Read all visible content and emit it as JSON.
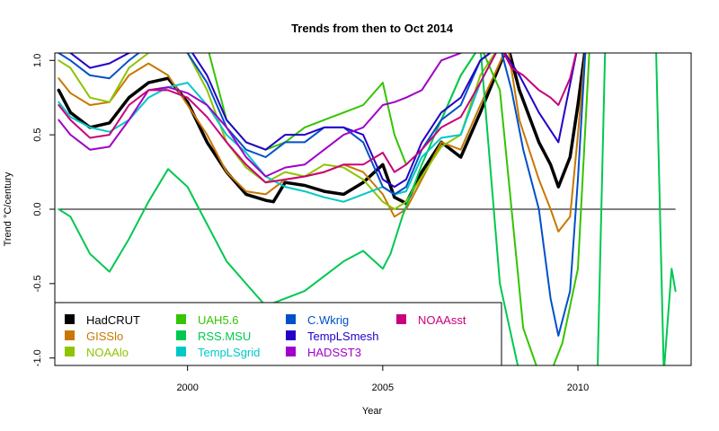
{
  "chart_data": {
    "type": "line",
    "title": "Trends from then to Oct 2014",
    "xlabel": "Year",
    "ylabel": "Trend °C/century",
    "xlim": [
      1996.6,
      2012.9
    ],
    "ylim": [
      -1.05,
      1.05
    ],
    "x_ticks": [
      {
        "value": 2000,
        "label": "2000"
      },
      {
        "value": 2005,
        "label": "2005"
      },
      {
        "value": 2010,
        "label": "2010"
      }
    ],
    "y_ticks": [
      {
        "value": -1.0,
        "label": "-1.0"
      },
      {
        "value": -0.5,
        "label": "-0.5"
      },
      {
        "value": 0.0,
        "label": "0.0"
      },
      {
        "value": 0.5,
        "label": "0.5"
      },
      {
        "value": 1.0,
        "label": "1.0"
      }
    ],
    "reference_line": 0,
    "series": [
      {
        "name": "HadCRUT",
        "color": "#000000",
        "width": 3.5,
        "x": [
          1996.7,
          1997,
          1997.5,
          1998,
          1998.5,
          1999,
          1999.5,
          2000,
          2000.5,
          2001,
          2001.5,
          2002,
          2002.2,
          2002.5,
          2003,
          2003.5,
          2004,
          2004.5,
          2005,
          2005.3,
          2005.6,
          2006,
          2006.5,
          2007,
          2007.5,
          2008.2,
          2008.5,
          2009,
          2009.3,
          2009.5,
          2009.8,
          2010,
          2010.2
        ],
        "y": [
          0.8,
          0.65,
          0.55,
          0.58,
          0.75,
          0.85,
          0.88,
          0.72,
          0.45,
          0.25,
          0.1,
          0.06,
          0.05,
          0.18,
          0.16,
          0.12,
          0.1,
          0.18,
          0.3,
          0.08,
          0.04,
          0.25,
          0.45,
          0.35,
          0.65,
          1.1,
          0.8,
          0.45,
          0.3,
          0.15,
          0.35,
          0.7,
          1.1
        ]
      },
      {
        "name": "GISSlo",
        "color": "#c87800",
        "width": 2,
        "x": [
          1996.7,
          1997,
          1997.5,
          1998,
          1998.5,
          1999,
          1999.5,
          2000,
          2000.5,
          2001,
          2001.5,
          2002,
          2002.5,
          2003,
          2003.5,
          2004,
          2004.5,
          2005,
          2005.3,
          2005.6,
          2006,
          2006.5,
          2007,
          2007.5,
          2008.2,
          2008.5,
          2009,
          2009.3,
          2009.5,
          2009.8,
          2010,
          2010.2
        ],
        "y": [
          0.88,
          0.78,
          0.7,
          0.72,
          0.9,
          0.98,
          0.9,
          0.7,
          0.5,
          0.25,
          0.12,
          0.1,
          0.2,
          0.22,
          0.25,
          0.3,
          0.25,
          0.1,
          -0.05,
          0.0,
          0.2,
          0.45,
          0.4,
          0.7,
          1.1,
          0.6,
          0.2,
          0.0,
          -0.15,
          -0.05,
          0.5,
          1.1
        ]
      },
      {
        "name": "NOAAlo",
        "color": "#8ec400",
        "width": 2,
        "x": [
          1996.7,
          1997,
          1997.5,
          1998,
          1998.5,
          1999,
          1999.5,
          2000,
          2000.5,
          2001,
          2001.5,
          2002,
          2002.5,
          2003,
          2003.5,
          2004,
          2004.5,
          2005,
          2005.3,
          2005.6,
          2006,
          2006.5,
          2007,
          2007.5,
          2008
        ],
        "y": [
          1.0,
          0.95,
          0.75,
          0.72,
          0.95,
          1.05,
          1.1,
          1.05,
          0.8,
          0.45,
          0.28,
          0.18,
          0.25,
          0.22,
          0.3,
          0.28,
          0.2,
          0.05,
          0.0,
          0.05,
          0.22,
          0.42,
          0.5,
          0.9,
          1.1
        ]
      },
      {
        "name": "UAH5.6",
        "color": "#34c400",
        "width": 2,
        "x": [
          1998,
          1998.5,
          1999,
          1999.5,
          2000,
          2000.5,
          2001,
          2001.5,
          2002,
          2002.5,
          2003,
          2003.5,
          2004,
          2004.5,
          2005,
          2005.3,
          2005.6,
          2006,
          2006.5,
          2007,
          2007.5,
          2008,
          2008.3,
          2008.6,
          2009,
          2009.3,
          2009.6,
          2010,
          2010.3
        ],
        "y": [
          1.1,
          1.05,
          1.1,
          1.1,
          1.1,
          1.1,
          0.6,
          0.45,
          0.4,
          0.45,
          0.55,
          0.6,
          0.65,
          0.7,
          0.85,
          0.5,
          0.3,
          0.4,
          0.6,
          0.9,
          1.1,
          0.8,
          0.0,
          -0.8,
          -1.1,
          -1.1,
          -0.9,
          -0.4,
          1.1
        ]
      },
      {
        "name": "RSS.MSU",
        "color": "#00c850",
        "width": 2,
        "x": [
          1996.7,
          1997,
          1997.5,
          1998,
          1998.5,
          1999,
          1999.5,
          2000,
          2000.5,
          2001,
          2001.5,
          2002,
          2002.5,
          2003,
          2003.5,
          2004,
          2004.5,
          2005,
          2005.2,
          2005.5,
          2006,
          2006.5,
          2007,
          2007.5,
          2008,
          2008.5,
          2009,
          2009.5,
          2010,
          2010.5,
          2010.7,
          2011,
          2012,
          2012.2,
          2012.4,
          2012.5
        ],
        "y": [
          0.0,
          -0.05,
          -0.3,
          -0.42,
          -0.2,
          0.05,
          0.27,
          0.15,
          -0.1,
          -0.35,
          -0.5,
          -0.65,
          -0.6,
          -0.55,
          -0.45,
          -0.35,
          -0.28,
          -0.4,
          -0.3,
          -0.05,
          0.3,
          0.6,
          0.9,
          1.1,
          -0.5,
          -1.1,
          -1.1,
          -1.1,
          -1.1,
          -1.1,
          1.1,
          1.1,
          1.1,
          -1.1,
          -0.4,
          -0.55
        ]
      },
      {
        "name": "TempLSgrid",
        "color": "#00c8c8",
        "width": 2,
        "x": [
          1996.7,
          1997,
          1997.5,
          1998,
          1998.5,
          1999,
          1999.5,
          2000,
          2000.5,
          2001,
          2001.5,
          2002,
          2002.5,
          2003,
          2003.5,
          2004,
          2004.5,
          2005,
          2005.3,
          2005.6,
          2006,
          2006.5,
          2007,
          2007.5,
          2008
        ],
        "y": [
          0.72,
          0.62,
          0.55,
          0.52,
          0.6,
          0.75,
          0.82,
          0.85,
          0.7,
          0.5,
          0.38,
          0.22,
          0.15,
          0.12,
          0.08,
          0.05,
          0.1,
          0.15,
          0.1,
          0.12,
          0.35,
          0.48,
          0.5,
          0.85,
          1.1
        ]
      },
      {
        "name": "C.Wkrig",
        "color": "#0050c8",
        "width": 2,
        "x": [
          1996.7,
          1997,
          1997.5,
          1998,
          1998.5,
          1999,
          1999.5,
          2000,
          2000.5,
          2001,
          2001.5,
          2002,
          2002.5,
          2003,
          2003.5,
          2004,
          2004.5,
          2005,
          2005.3,
          2005.6,
          2006,
          2006.5,
          2007,
          2007.5,
          2008,
          2008.3,
          2008.6,
          2009,
          2009.3,
          2009.5,
          2009.8,
          2010,
          2010.2
        ],
        "y": [
          1.05,
          1.0,
          0.9,
          0.88,
          1.0,
          1.1,
          1.1,
          1.05,
          0.85,
          0.55,
          0.4,
          0.35,
          0.45,
          0.45,
          0.55,
          0.55,
          0.45,
          0.15,
          0.1,
          0.15,
          0.4,
          0.6,
          0.7,
          1.0,
          1.1,
          0.8,
          0.4,
          0.0,
          -0.6,
          -0.85,
          -0.55,
          0.2,
          1.1
        ]
      },
      {
        "name": "TempLSmesh",
        "color": "#2400c8",
        "width": 2,
        "x": [
          1996.7,
          1997,
          1997.5,
          1998,
          1998.5,
          1999,
          1999.5,
          2000,
          2000.5,
          2001,
          2001.5,
          2002,
          2002.5,
          2003,
          2003.5,
          2004,
          2004.5,
          2005,
          2005.3,
          2005.6,
          2006,
          2006.5,
          2007,
          2007.5,
          2008,
          2008.5,
          2009,
          2009.5,
          2010
        ],
        "y": [
          1.1,
          1.05,
          0.95,
          0.98,
          1.05,
          1.1,
          1.1,
          1.1,
          0.9,
          0.6,
          0.45,
          0.4,
          0.5,
          0.5,
          0.55,
          0.55,
          0.5,
          0.2,
          0.15,
          0.2,
          0.45,
          0.65,
          0.75,
          1.0,
          1.1,
          0.9,
          0.65,
          0.45,
          1.1
        ]
      },
      {
        "name": "HADSST3",
        "color": "#a000c8",
        "width": 2,
        "x": [
          1996.7,
          1997,
          1997.5,
          1998,
          1998.5,
          1999,
          1999.5,
          2000,
          2000.5,
          2001,
          2001.5,
          2002,
          2002.5,
          2003,
          2003.5,
          2004,
          2004.5,
          2005,
          2005.3,
          2005.6,
          2006,
          2006.5,
          2007,
          2007.3,
          2007.6
        ],
        "y": [
          0.6,
          0.5,
          0.4,
          0.42,
          0.6,
          0.8,
          0.82,
          0.78,
          0.7,
          0.55,
          0.35,
          0.22,
          0.28,
          0.3,
          0.4,
          0.5,
          0.55,
          0.7,
          0.72,
          0.75,
          0.8,
          1.0,
          1.05,
          1.1,
          1.1
        ]
      },
      {
        "name": "NOAAsst",
        "color": "#c8007c",
        "width": 2,
        "x": [
          1996.7,
          1997,
          1997.5,
          1998,
          1998.5,
          1999,
          1999.5,
          2000,
          2000.5,
          2001,
          2001.5,
          2002,
          2002.5,
          2003,
          2003.5,
          2004,
          2004.5,
          2005,
          2005.3,
          2005.6,
          2006,
          2006.5,
          2007,
          2007.5,
          2008,
          2008.3,
          2008.6,
          2009,
          2009.3,
          2009.5,
          2009.8,
          2010
        ],
        "y": [
          0.7,
          0.6,
          0.48,
          0.5,
          0.7,
          0.8,
          0.8,
          0.75,
          0.62,
          0.45,
          0.3,
          0.18,
          0.2,
          0.22,
          0.25,
          0.3,
          0.3,
          0.38,
          0.25,
          0.3,
          0.4,
          0.55,
          0.62,
          0.85,
          1.1,
          0.95,
          0.9,
          0.8,
          0.75,
          0.7,
          0.88,
          1.1
        ]
      }
    ],
    "legend": {
      "placement": "bottom-left",
      "entries": [
        {
          "name": "HadCRUT",
          "color": "#000000"
        },
        {
          "name": "GISSlo",
          "color": "#c87800"
        },
        {
          "name": "NOAAlo",
          "color": "#8ec400"
        },
        {
          "name": "UAH5.6",
          "color": "#34c400"
        },
        {
          "name": "RSS.MSU",
          "color": "#00c850"
        },
        {
          "name": "TempLSgrid",
          "color": "#00c8c8"
        },
        {
          "name": "C.Wkrig",
          "color": "#0050c8"
        },
        {
          "name": "TempLSmesh",
          "color": "#2400c8"
        },
        {
          "name": "HADSST3",
          "color": "#a000c8"
        },
        {
          "name": "NOAAsst",
          "color": "#c8007c"
        }
      ]
    }
  }
}
